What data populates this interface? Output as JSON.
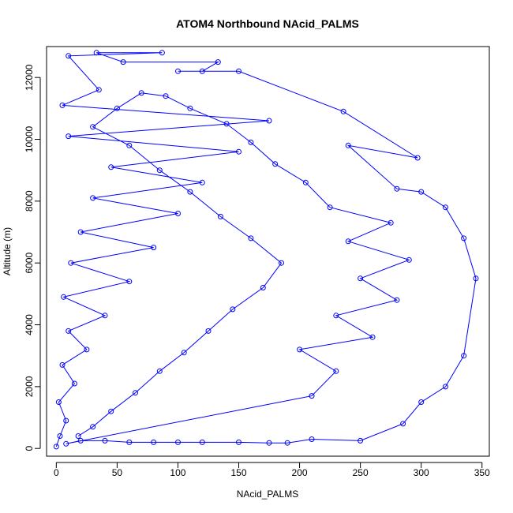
{
  "chart_data": {
    "type": "scatter",
    "title": "ATOM4 Northbound NAcid_PALMS",
    "xlabel": "NAcid_PALMS",
    "ylabel": "Altitude (m)",
    "xlim": [
      -8,
      356
    ],
    "ylim": [
      -250,
      13000
    ],
    "x_ticks": [
      0,
      50,
      100,
      150,
      200,
      250,
      300,
      350
    ],
    "y_ticks": [
      0,
      2000,
      4000,
      6000,
      8000,
      10000,
      12000
    ],
    "x_tick_labels": [
      "0",
      "50",
      "100",
      "150",
      "200",
      "250",
      "300",
      "350"
    ],
    "y_tick_labels": [
      "0",
      "2000",
      "4000",
      "6000",
      "8000",
      "10000",
      "12000"
    ],
    "grid": false,
    "legend": "none",
    "marker": "open-circle",
    "connect_points": true,
    "series": [
      {
        "color": "#0000ff",
        "points": [
          {
            "x": 0,
            "y": 60
          },
          {
            "x": 3,
            "y": 400
          },
          {
            "x": 8,
            "y": 900
          },
          {
            "x": 2,
            "y": 1500
          },
          {
            "x": 15,
            "y": 2100
          },
          {
            "x": 5,
            "y": 2700
          },
          {
            "x": 25,
            "y": 3200
          },
          {
            "x": 10,
            "y": 3800
          },
          {
            "x": 40,
            "y": 4300
          },
          {
            "x": 6,
            "y": 4900
          },
          {
            "x": 60,
            "y": 5400
          },
          {
            "x": 12,
            "y": 6000
          },
          {
            "x": 80,
            "y": 6500
          },
          {
            "x": 20,
            "y": 7000
          },
          {
            "x": 100,
            "y": 7600
          },
          {
            "x": 30,
            "y": 8100
          },
          {
            "x": 120,
            "y": 8600
          },
          {
            "x": 45,
            "y": 9100
          },
          {
            "x": 150,
            "y": 9600
          },
          {
            "x": 10,
            "y": 10100
          },
          {
            "x": 175,
            "y": 10600
          },
          {
            "x": 5,
            "y": 11100
          },
          {
            "x": 35,
            "y": 11600
          },
          {
            "x": 10,
            "y": 12700
          },
          {
            "x": 87,
            "y": 12800
          },
          {
            "x": 33,
            "y": 12800
          },
          {
            "x": 55,
            "y": 12500
          },
          {
            "x": 133,
            "y": 12500
          },
          {
            "x": 120,
            "y": 12200
          },
          {
            "x": 100,
            "y": 12200
          },
          {
            "x": 150,
            "y": 12200
          },
          {
            "x": 236,
            "y": 10900
          },
          {
            "x": 297,
            "y": 9400
          },
          {
            "x": 240,
            "y": 9800
          },
          {
            "x": 280,
            "y": 8400
          },
          {
            "x": 300,
            "y": 8300
          },
          {
            "x": 320,
            "y": 7800
          },
          {
            "x": 335,
            "y": 6800
          },
          {
            "x": 345,
            "y": 5500
          },
          {
            "x": 335,
            "y": 3000
          },
          {
            "x": 320,
            "y": 2000
          },
          {
            "x": 300,
            "y": 1500
          },
          {
            "x": 285,
            "y": 800
          },
          {
            "x": 250,
            "y": 250
          },
          {
            "x": 210,
            "y": 300
          },
          {
            "x": 190,
            "y": 180
          },
          {
            "x": 175,
            "y": 180
          },
          {
            "x": 150,
            "y": 200
          },
          {
            "x": 120,
            "y": 200
          },
          {
            "x": 100,
            "y": 200
          },
          {
            "x": 80,
            "y": 200
          },
          {
            "x": 60,
            "y": 200
          },
          {
            "x": 40,
            "y": 250
          },
          {
            "x": 20,
            "y": 250
          },
          {
            "x": 8,
            "y": 150
          },
          {
            "x": 210,
            "y": 1700
          },
          {
            "x": 230,
            "y": 2500
          },
          {
            "x": 200,
            "y": 3200
          },
          {
            "x": 260,
            "y": 3600
          },
          {
            "x": 230,
            "y": 4300
          },
          {
            "x": 280,
            "y": 4800
          },
          {
            "x": 250,
            "y": 5500
          },
          {
            "x": 290,
            "y": 6100
          },
          {
            "x": 240,
            "y": 6700
          },
          {
            "x": 275,
            "y": 7300
          },
          {
            "x": 225,
            "y": 7800
          },
          {
            "x": 205,
            "y": 8600
          },
          {
            "x": 180,
            "y": 9200
          },
          {
            "x": 160,
            "y": 9900
          },
          {
            "x": 140,
            "y": 10500
          },
          {
            "x": 110,
            "y": 11000
          },
          {
            "x": 90,
            "y": 11400
          },
          {
            "x": 70,
            "y": 11500
          },
          {
            "x": 50,
            "y": 11000
          },
          {
            "x": 30,
            "y": 10400
          },
          {
            "x": 60,
            "y": 9800
          },
          {
            "x": 85,
            "y": 9000
          },
          {
            "x": 110,
            "y": 8300
          },
          {
            "x": 135,
            "y": 7500
          },
          {
            "x": 160,
            "y": 6800
          },
          {
            "x": 185,
            "y": 6000
          },
          {
            "x": 170,
            "y": 5200
          },
          {
            "x": 145,
            "y": 4500
          },
          {
            "x": 125,
            "y": 3800
          },
          {
            "x": 105,
            "y": 3100
          },
          {
            "x": 85,
            "y": 2500
          },
          {
            "x": 65,
            "y": 1800
          },
          {
            "x": 45,
            "y": 1200
          },
          {
            "x": 30,
            "y": 700
          },
          {
            "x": 18,
            "y": 400
          }
        ]
      }
    ]
  }
}
